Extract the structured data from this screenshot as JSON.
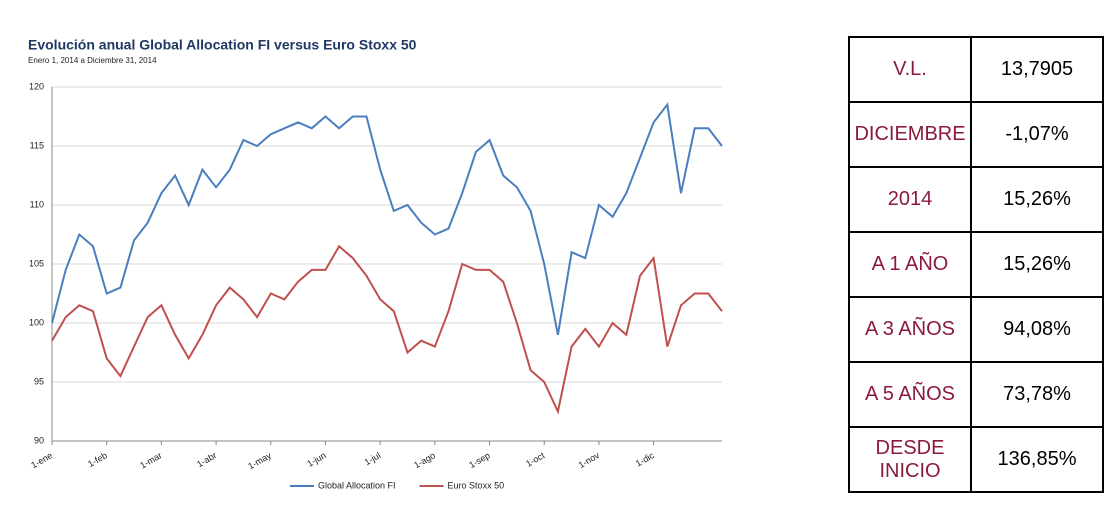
{
  "chart_data": {
    "type": "line",
    "title": "Evolución anual Global Allocation FI versus Euro Stoxx 50",
    "subtitle": "Enero 1, 2014 a Diciembre 31, 2014",
    "categories": [
      "1-ene",
      null,
      null,
      null,
      "1-feb",
      null,
      null,
      null,
      "1-mar",
      null,
      null,
      null,
      "1-abr",
      null,
      null,
      null,
      "1-may",
      null,
      null,
      null,
      "1-jun",
      null,
      null,
      null,
      "1-jul",
      null,
      null,
      null,
      "1-ago",
      null,
      null,
      null,
      "1-sep",
      null,
      null,
      null,
      "1-oct",
      null,
      null,
      null,
      "1-nov",
      null,
      null,
      null,
      "1-dic",
      null,
      null,
      null,
      null,
      null
    ],
    "series": [
      {
        "name": "Global Allocation FI",
        "color": "#4a7ebf",
        "values": [
          100,
          104.5,
          107.5,
          106.5,
          102.5,
          103,
          107,
          108.5,
          111,
          112.5,
          110,
          113,
          111.5,
          113,
          115.5,
          115,
          116,
          116.5,
          117,
          116.5,
          117.5,
          116.5,
          117.5,
          117.5,
          113,
          109.5,
          110,
          108.5,
          107.5,
          108,
          111,
          114.5,
          115.5,
          112.5,
          111.5,
          109.5,
          105,
          99,
          106,
          105.5,
          110,
          109,
          111,
          114,
          117,
          118.5,
          111,
          116.5,
          116.5,
          115
        ]
      },
      {
        "name": "Euro Stoxx 50",
        "color": "#c0504d",
        "values": [
          98.5,
          100.5,
          101.5,
          101,
          97,
          95.5,
          98,
          100.5,
          101.5,
          99,
          97,
          99,
          101.5,
          103,
          102,
          100.5,
          102.5,
          102,
          103.5,
          104.5,
          104.5,
          106.5,
          105.5,
          104,
          102,
          101,
          97.5,
          98.5,
          98,
          101,
          105,
          104.5,
          104.5,
          103.5,
          100,
          96,
          95,
          92.5,
          98,
          99.5,
          98,
          100,
          99,
          104,
          105.5,
          98,
          101.5,
          102.5,
          102.5,
          101
        ]
      }
    ],
    "ylim": [
      90,
      120
    ],
    "yticks": [
      90,
      95,
      100,
      105,
      110,
      115,
      120
    ],
    "grid": true,
    "legend": "bottom"
  },
  "table": {
    "rows": [
      [
        "V.L.",
        "13,7905"
      ],
      [
        "DICIEMBRE",
        "-1,07%"
      ],
      [
        "2014",
        "15,26%"
      ],
      [
        "A 1 AÑO",
        "15,26%"
      ],
      [
        "A 3 AÑOS",
        "94,08%"
      ],
      [
        "A 5 AÑOS",
        "73,78%"
      ],
      [
        "DESDE INICIO",
        "136,85%"
      ]
    ]
  }
}
